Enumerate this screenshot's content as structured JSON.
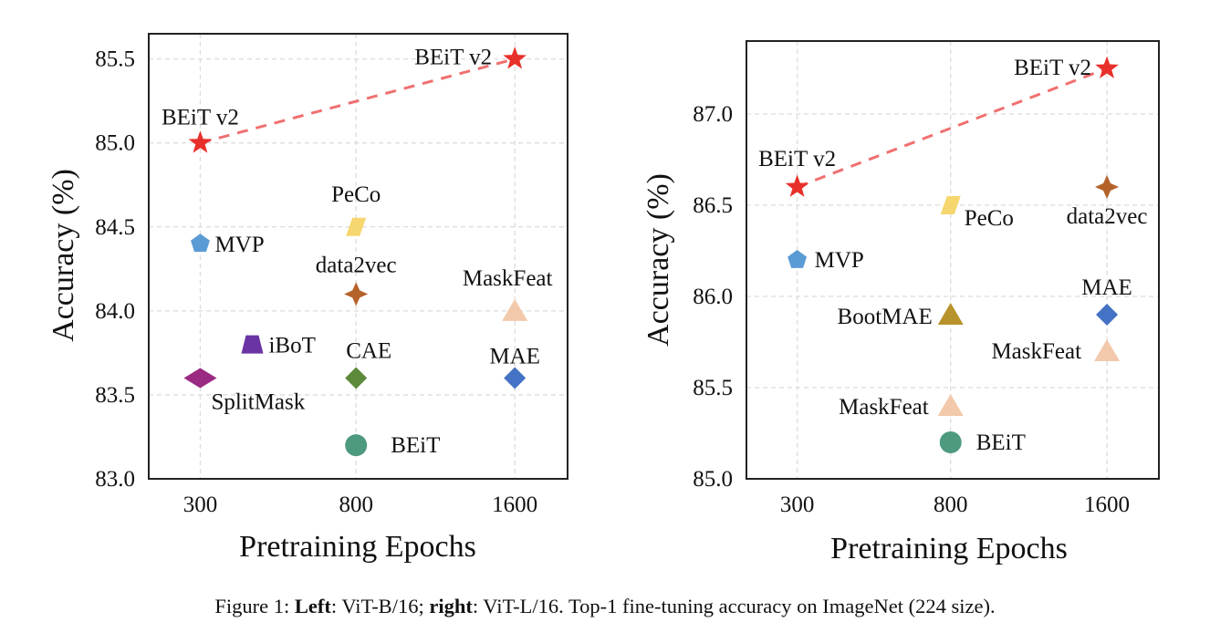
{
  "caption": {
    "prefix": "Figure 1: ",
    "left_bold": "Left",
    "left_text": ": ViT-B/16; ",
    "right_bold": "right",
    "right_text": ": ViT-L/16. Top-1 fine-tuning accuracy on ImageNet (224 size)."
  },
  "chart_data": [
    {
      "type": "scatter",
      "title": "",
      "xlabel": "Pretraining Epochs",
      "ylabel": "Accuracy (%)",
      "xticks": [
        300,
        800,
        1600
      ],
      "yticks": [
        "83.0",
        "83.5",
        "84.0",
        "84.5",
        "85.0",
        "85.5"
      ],
      "ylim": [
        83.0,
        85.65
      ],
      "grid": true,
      "line": {
        "series": "BEiT v2",
        "style": "dashed",
        "color": "#f07070"
      },
      "points": [
        {
          "label": "BEiT v2",
          "x": 300,
          "y": 85.0,
          "marker": "star",
          "color": "#e8302a"
        },
        {
          "label": "BEiT v2",
          "x": 1600,
          "y": 85.5,
          "marker": "star",
          "color": "#e8302a"
        },
        {
          "label": "MVP",
          "x": 300,
          "y": 84.4,
          "marker": "pentagon",
          "color": "#5b9bd5"
        },
        {
          "label": "PeCo",
          "x": 800,
          "y": 84.5,
          "marker": "parallelogram",
          "color": "#f6d66e"
        },
        {
          "label": "data2vec",
          "x": 800,
          "y": 84.1,
          "marker": "four-point-star",
          "color": "#b5622a"
        },
        {
          "label": "MaskFeat",
          "x": 1600,
          "y": 84.0,
          "marker": "triangle",
          "color": "#f2c9aa"
        },
        {
          "label": "iBoT",
          "x": 467,
          "y": 83.8,
          "marker": "trapezoid",
          "color": "#6b34a4"
        },
        {
          "label": "SplitMask",
          "x": 300,
          "y": 83.6,
          "marker": "wide-diamond",
          "color": "#9a2a82"
        },
        {
          "label": "CAE",
          "x": 800,
          "y": 83.6,
          "marker": "diamond",
          "color": "#5c8a3a"
        },
        {
          "label": "MAE",
          "x": 1600,
          "y": 83.6,
          "marker": "diamond",
          "color": "#4472c4"
        },
        {
          "label": "BEiT",
          "x": 800,
          "y": 83.2,
          "marker": "circle",
          "color": "#4d9a7e"
        }
      ]
    },
    {
      "type": "scatter",
      "title": "",
      "xlabel": "Pretraining Epochs",
      "ylabel": "Accuracy (%)",
      "xticks": [
        300,
        800,
        1600
      ],
      "yticks": [
        "85.0",
        "85.5",
        "86.0",
        "86.5",
        "87.0"
      ],
      "ylim": [
        85.0,
        87.4
      ],
      "grid": true,
      "line": {
        "series": "BEiT v2",
        "style": "dashed",
        "color": "#f07070"
      },
      "points": [
        {
          "label": "BEiT v2",
          "x": 300,
          "y": 86.6,
          "marker": "star",
          "color": "#e8302a"
        },
        {
          "label": "BEiT v2",
          "x": 1600,
          "y": 87.25,
          "marker": "star",
          "color": "#e8302a"
        },
        {
          "label": "data2vec",
          "x": 1600,
          "y": 86.6,
          "marker": "four-point-star",
          "color": "#b5622a"
        },
        {
          "label": "PeCo",
          "x": 800,
          "y": 86.5,
          "marker": "parallelogram",
          "color": "#f6d66e"
        },
        {
          "label": "MVP",
          "x": 300,
          "y": 86.2,
          "marker": "pentagon",
          "color": "#5b9bd5"
        },
        {
          "label": "BootMAE",
          "x": 800,
          "y": 85.9,
          "marker": "triangle",
          "color": "#b8922a"
        },
        {
          "label": "MAE",
          "x": 1600,
          "y": 85.9,
          "marker": "diamond",
          "color": "#4472c4"
        },
        {
          "label": "MaskFeat",
          "x": 1600,
          "y": 85.7,
          "marker": "triangle",
          "color": "#f2c9aa"
        },
        {
          "label": "MaskFeat",
          "x": 800,
          "y": 85.4,
          "marker": "triangle",
          "color": "#f2c9aa"
        },
        {
          "label": "BEiT",
          "x": 800,
          "y": 85.2,
          "marker": "circle",
          "color": "#4d9a7e"
        }
      ]
    }
  ]
}
